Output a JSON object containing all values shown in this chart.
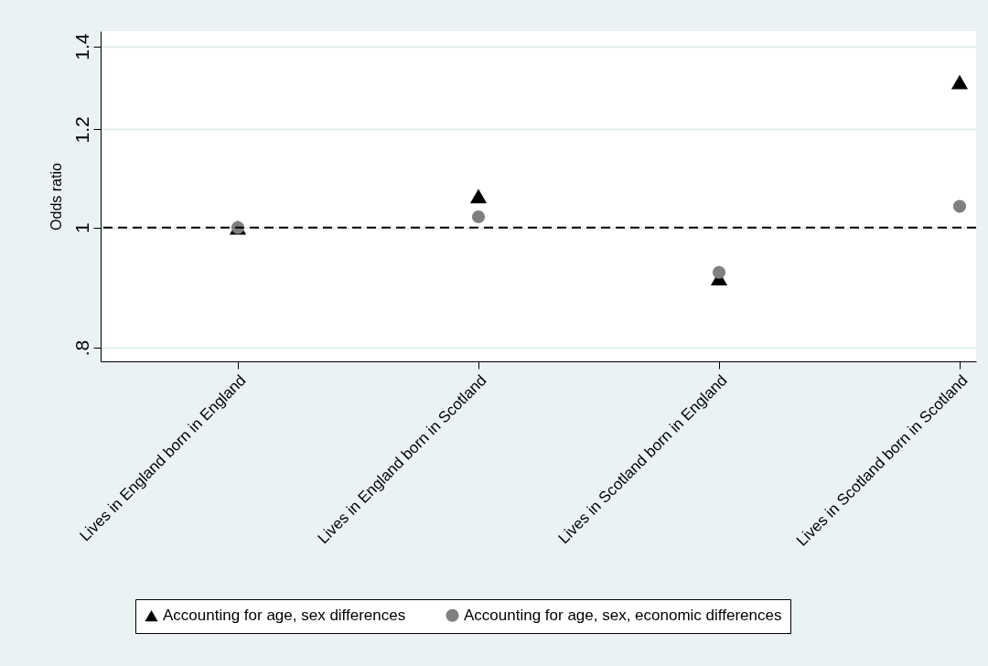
{
  "chart_data": {
    "type": "scatter",
    "ylabel": "Odds ratio",
    "categories": [
      "Lives in England born in England",
      "Lives in England born in Scotland",
      "Lives in Scotland born in England",
      "Lives in Scotland born in Scotland"
    ],
    "series": [
      {
        "name": "Accounting for age, sex differences",
        "color": "#000000",
        "marker": "triangle",
        "values": [
          1.0,
          1.06,
          0.91,
          1.31
        ]
      },
      {
        "name": "Accounting for age, sex, economic differences",
        "color": "#808080",
        "marker": "circle",
        "values": [
          1.0,
          1.02,
          0.92,
          1.04
        ]
      }
    ],
    "log": "y",
    "ylim": [
      0.78,
      1.44
    ],
    "yticks": [
      {
        "value": 0.8,
        "label": ".8"
      },
      1,
      1.2,
      1.4
    ],
    "grid": "y",
    "legend": "bottom",
    "ref_lines": [
      {
        "axis": "y",
        "value": 1,
        "label": null,
        "color": "#000000",
        "line_style": "dashed"
      }
    ]
  }
}
